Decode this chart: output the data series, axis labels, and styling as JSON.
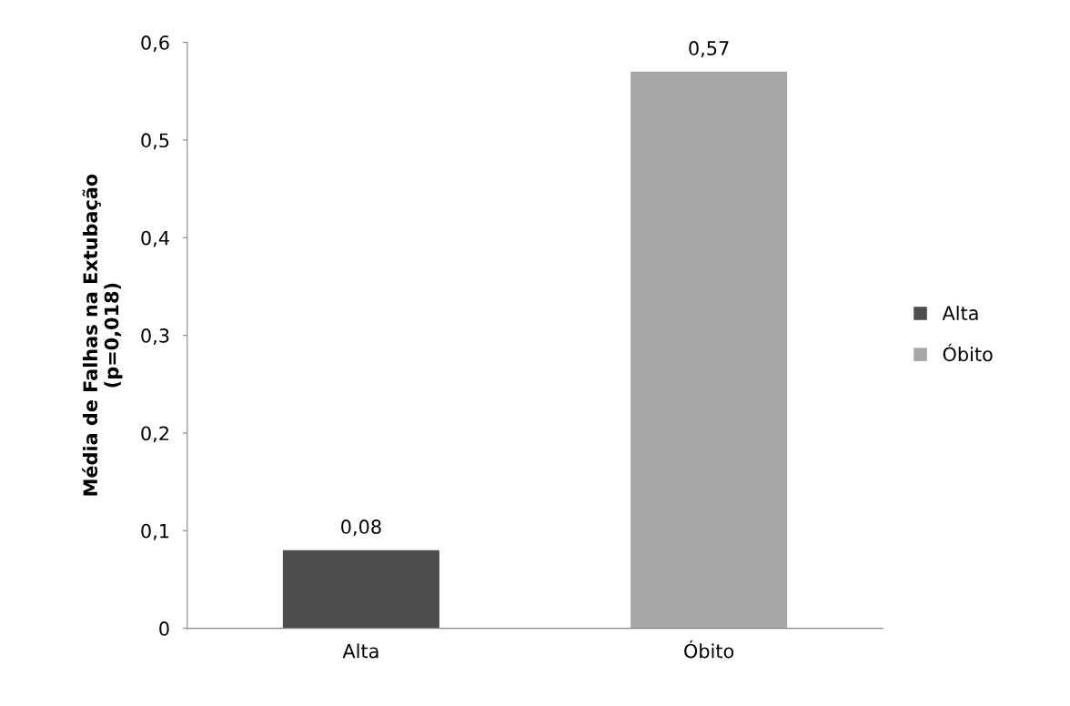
{
  "chart_data": {
    "type": "bar",
    "ylabel": "Média de Falhas na Extubação\n(p=0,018)",
    "categories": [
      "Alta",
      "Óbito"
    ],
    "stacked": true,
    "series": [
      {
        "name": "Alta",
        "color": "#4d4d4d",
        "values": [
          0.08,
          null
        ],
        "value_labels": [
          "0,08",
          null
        ]
      },
      {
        "name": "Óbito",
        "color": "#a6a6a6",
        "values": [
          null,
          0.57
        ],
        "value_labels": [
          null,
          "0,57"
        ]
      }
    ],
    "ylim": [
      0,
      0.6
    ],
    "yticks": [
      {
        "value": 0,
        "label": "0"
      },
      {
        "value": 0.1,
        "label": "0,1"
      },
      {
        "value": 0.2,
        "label": "0,2"
      },
      {
        "value": 0.3,
        "label": "0,3"
      },
      {
        "value": 0.4,
        "label": "0,4"
      },
      {
        "value": 0.5,
        "label": "0,5"
      },
      {
        "value": 0.6,
        "label": "0,6"
      }
    ],
    "legend": "right"
  }
}
